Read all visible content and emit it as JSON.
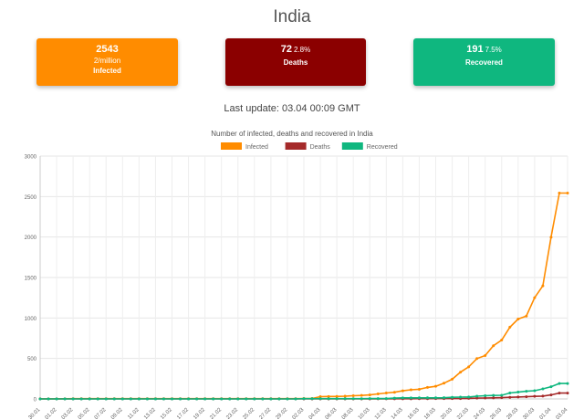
{
  "page_title": "India",
  "cards": {
    "infected": {
      "value": "2543",
      "per_million": "2/million",
      "label": "Infected",
      "color": "#ff8c00"
    },
    "deaths": {
      "value": "72",
      "pct": "2.8%",
      "label": "Deaths",
      "color": "#8b0000"
    },
    "recovered": {
      "value": "191",
      "pct": "7.5%",
      "label": "Recovered",
      "color": "#0fb77f"
    }
  },
  "last_update": "Last update: 03.04 00:09 GMT",
  "chart_data": {
    "type": "line",
    "title": "Number of infected, deaths and recovered in India",
    "legend_position": "top",
    "grid": true,
    "ylim": [
      0,
      3000
    ],
    "y_ticks": [
      0,
      500,
      1000,
      1500,
      2000,
      2500,
      3000
    ],
    "x": [
      "30.01",
      "31.01",
      "01.02",
      "02.02",
      "03.02",
      "04.02",
      "05.02",
      "06.02",
      "07.02",
      "08.02",
      "09.02",
      "10.02",
      "11.02",
      "12.02",
      "13.02",
      "14.02",
      "15.02",
      "16.02",
      "17.02",
      "18.02",
      "19.02",
      "20.02",
      "21.02",
      "22.02",
      "23.02",
      "24.02",
      "25.02",
      "26.02",
      "27.02",
      "28.02",
      "29.02",
      "01.03",
      "02.03",
      "03.03",
      "04.03",
      "05.03",
      "06.03",
      "07.03",
      "08.03",
      "09.03",
      "10.03",
      "11.03",
      "12.03",
      "13.03",
      "14.03",
      "15.03",
      "16.03",
      "17.03",
      "18.03",
      "19.03",
      "20.03",
      "21.03",
      "22.03",
      "23.03",
      "24.03",
      "25.03",
      "26.03",
      "27.03",
      "28.03",
      "29.03",
      "30.03",
      "31.03",
      "01.04",
      "02.04",
      "03.04"
    ],
    "x_tick_labels": [
      "30.01",
      "01.02",
      "03.02",
      "05.02",
      "07.02",
      "09.02",
      "11.02",
      "13.02",
      "15.02",
      "17.02",
      "19.02",
      "21.02",
      "23.02",
      "25.02",
      "27.02",
      "29.02",
      "02.03",
      "04.03",
      "06.03",
      "08.03",
      "10.03",
      "12.03",
      "14.03",
      "16.03",
      "18.03",
      "20.03",
      "22.03",
      "24.03",
      "26.03",
      "28.03",
      "30.03",
      "01.04",
      "03.04"
    ],
    "series": [
      {
        "name": "Infected",
        "color": "#ff8c00",
        "values": [
          1,
          1,
          1,
          2,
          3,
          3,
          3,
          3,
          3,
          3,
          3,
          3,
          3,
          3,
          3,
          3,
          3,
          3,
          3,
          3,
          3,
          3,
          3,
          3,
          3,
          3,
          3,
          3,
          3,
          3,
          3,
          3,
          5,
          6,
          28,
          30,
          31,
          34,
          39,
          43,
          50,
          62,
          73,
          82,
          100,
          113,
          119,
          142,
          156,
          194,
          244,
          330,
          396,
          499,
          536,
          657,
          727,
          887,
          987,
          1024,
          1251,
          1397,
          1998,
          2543,
          2543
        ]
      },
      {
        "name": "Deaths",
        "color": "#a52a2a",
        "values": [
          0,
          0,
          0,
          0,
          0,
          0,
          0,
          0,
          0,
          0,
          0,
          0,
          0,
          0,
          0,
          0,
          0,
          0,
          0,
          0,
          0,
          0,
          0,
          0,
          0,
          0,
          0,
          0,
          0,
          0,
          0,
          0,
          0,
          0,
          0,
          0,
          0,
          0,
          0,
          0,
          0,
          1,
          1,
          2,
          2,
          2,
          3,
          3,
          4,
          4,
          4,
          4,
          7,
          10,
          11,
          13,
          16,
          20,
          24,
          27,
          32,
          35,
          50,
          72,
          72
        ]
      },
      {
        "name": "Recovered",
        "color": "#0fb77f",
        "values": [
          0,
          0,
          0,
          0,
          0,
          0,
          0,
          0,
          0,
          0,
          0,
          0,
          0,
          0,
          0,
          0,
          0,
          0,
          0,
          0,
          0,
          0,
          0,
          0,
          0,
          0,
          0,
          0,
          0,
          0,
          0,
          0,
          3,
          3,
          3,
          3,
          3,
          3,
          3,
          3,
          4,
          4,
          4,
          10,
          13,
          13,
          14,
          14,
          14,
          15,
          20,
          23,
          24,
          34,
          40,
          43,
          45,
          73,
          84,
          95,
          102,
          124,
          151,
          191,
          191
        ]
      }
    ]
  }
}
